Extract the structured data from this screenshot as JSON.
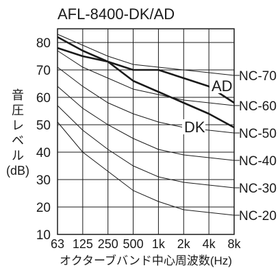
{
  "chart_data": {
    "type": "line",
    "title": "AFL-8400-DK/AD",
    "xlabel": "オクターブバンド中心周波数(Hz)",
    "ylabel": "音圧レベル(dB)",
    "ylabel_lines": [
      "音",
      "圧",
      "レ",
      "ベ",
      "ル",
      "(dB)"
    ],
    "categories": [
      "63",
      "125",
      "250",
      "500",
      "1k",
      "2k",
      "4k",
      "8k"
    ],
    "yticks": [
      10,
      20,
      30,
      40,
      50,
      60,
      70,
      80
    ],
    "ylim": [
      10,
      85
    ],
    "grid": true,
    "series": [
      {
        "name": "AD",
        "values": [
          82,
          77,
          73,
          70,
          70,
          67,
          64,
          58
        ]
      },
      {
        "name": "DK",
        "values": [
          78,
          75,
          73,
          66,
          62,
          58,
          54,
          49
        ]
      }
    ],
    "nc_curves": [
      {
        "name": "NC-70",
        "values": [
          83,
          79,
          75,
          72,
          71,
          70,
          69,
          68
        ]
      },
      {
        "name": "NC-60",
        "values": [
          77,
          71,
          67,
          63,
          61,
          59,
          58,
          57
        ]
      },
      {
        "name": "NC-50",
        "values": [
          71,
          64,
          58,
          54,
          51,
          49,
          48,
          47
        ]
      },
      {
        "name": "NC-40",
        "values": [
          64,
          56,
          50,
          45,
          41,
          39,
          38,
          37
        ]
      },
      {
        "name": "NC-30",
        "values": [
          57,
          48,
          41,
          35,
          31,
          29,
          28,
          27
        ]
      },
      {
        "name": "NC-20",
        "values": [
          51,
          40,
          33,
          26,
          22,
          19,
          18,
          17
        ]
      }
    ]
  }
}
